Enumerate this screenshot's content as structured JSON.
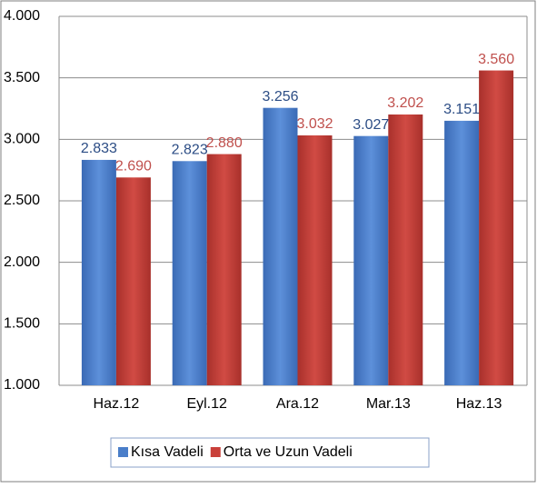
{
  "chart_data": {
    "type": "bar",
    "categories": [
      "Haz.12",
      "Eyl.12",
      "Ara.12",
      "Mar.13",
      "Haz.13"
    ],
    "series": [
      {
        "name": "Kısa Vadeli",
        "color": "#4a7ec9",
        "values": [
          2833,
          2823,
          3256,
          3027,
          3151
        ],
        "value_labels": [
          "2.833",
          "2.823",
          "3.256",
          "3.027",
          "3.151"
        ],
        "label_color": "#2c4d85"
      },
      {
        "name": "Orta ve Uzun Vadeli",
        "color": "#c9403a",
        "values": [
          2690,
          2880,
          3032,
          3202,
          3560
        ],
        "value_labels": [
          "2.690",
          "2.880",
          "3.032",
          "3.202",
          "3.560"
        ],
        "label_color": "#c0504d"
      }
    ],
    "ylim": [
      1000,
      4000
    ],
    "yticks": [
      {
        "value": 1000,
        "label": "1.000"
      },
      {
        "value": 1500,
        "label": "1.500"
      },
      {
        "value": 2000,
        "label": "2.000"
      },
      {
        "value": 2500,
        "label": "2.500"
      },
      {
        "value": 3000,
        "label": "3.000"
      },
      {
        "value": 3500,
        "label": "3.500"
      },
      {
        "value": 4000,
        "label": "4.000"
      }
    ],
    "grid": true,
    "legend": "bottom"
  }
}
